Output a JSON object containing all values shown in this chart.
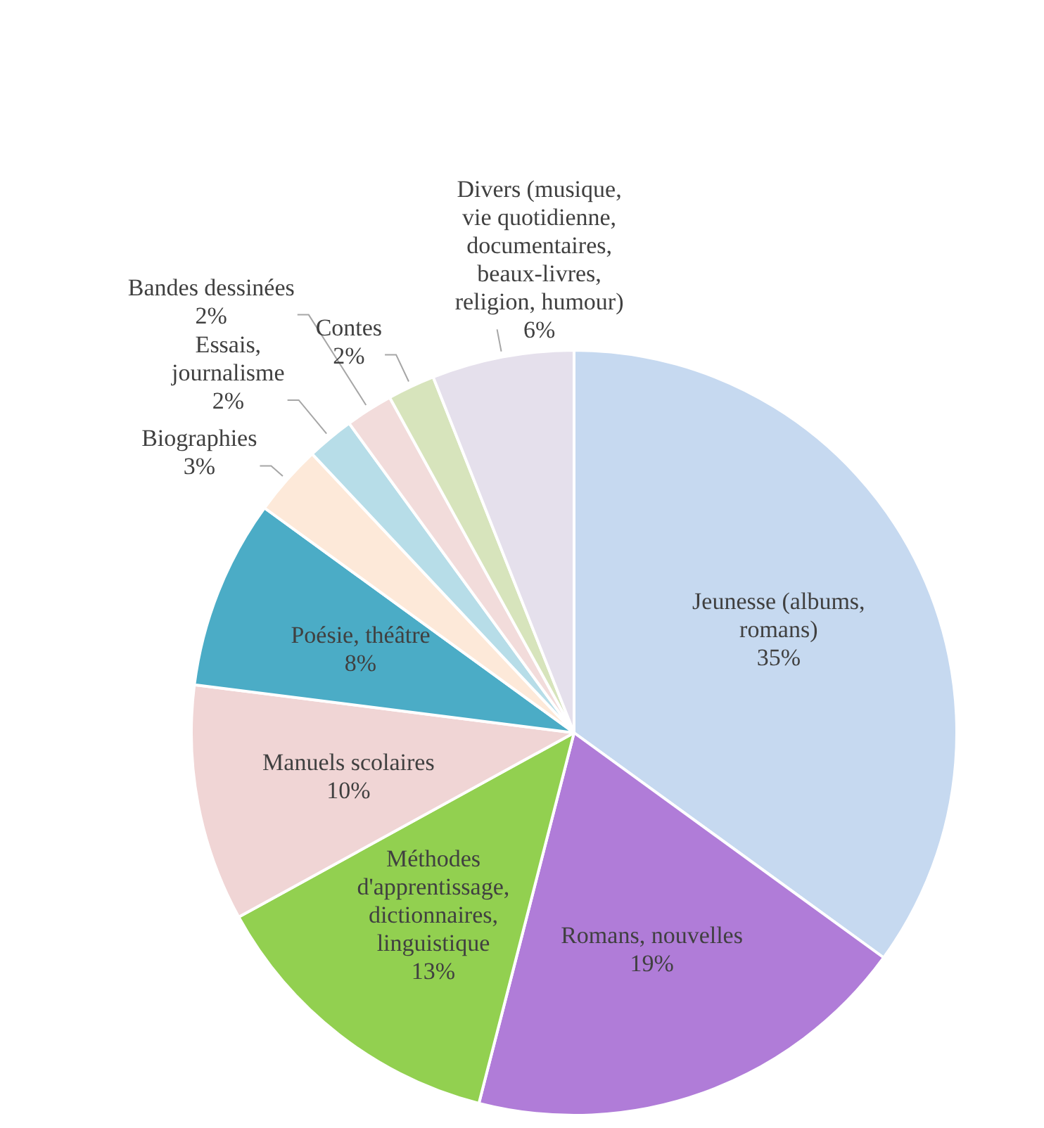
{
  "chart_data": {
    "type": "pie",
    "categories": [
      "Jeunesse (albums, romans)",
      "Romans, nouvelles",
      "Méthodes d'apprentissage, dictionnaires, linguistique",
      "Manuels scolaires",
      "Poésie, théâtre",
      "Biographies",
      "Essais, journalisme",
      "Bandes dessinées",
      "Contes",
      "Divers (musique, vie quotidienne, documentaires, beaux-livres, religion, humour)"
    ],
    "values": [
      35,
      19,
      13,
      10,
      8,
      3,
      2,
      2,
      2,
      6
    ],
    "colors": [
      "#c6d9f0",
      "#b07cd8",
      "#92d050",
      "#f0d5d5",
      "#4bacc6",
      "#fde9d9",
      "#b7dde8",
      "#f2dcdb",
      "#d7e4bc",
      "#e5e0ec"
    ],
    "value_labels": [
      "35%",
      "19%",
      "13%",
      "10%",
      "8%",
      "3%",
      "2%",
      "2%",
      "2%",
      "6%"
    ],
    "legend": false
  }
}
